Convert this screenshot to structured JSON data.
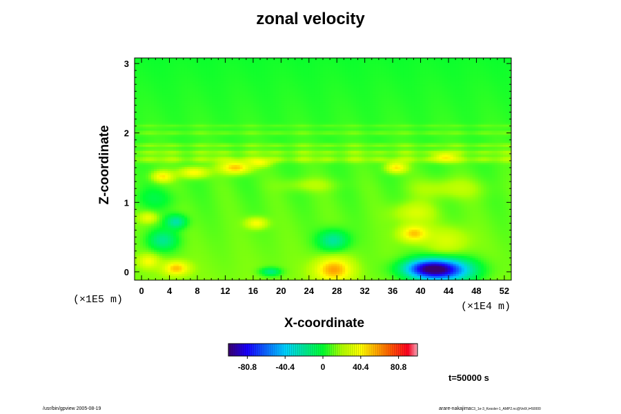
{
  "chart_data": {
    "type": "heatmap",
    "title": "zonal velocity",
    "xlabel": "X-coordinate",
    "ylabel": "Z-coordinate",
    "x_scale_note": "(×1E4 m)",
    "y_scale_note": "(×1E5 m)",
    "xlim": [
      -1,
      53
    ],
    "ylim": [
      -0.12,
      3.08
    ],
    "x_ticks": [
      0,
      4,
      8,
      12,
      16,
      20,
      24,
      28,
      32,
      36,
      40,
      44,
      48,
      52
    ],
    "y_ticks": [
      0,
      1,
      2,
      3
    ],
    "colorbar": {
      "range": [
        -101,
        101
      ],
      "tick_values": [
        -80.8,
        -40.4,
        0,
        40.4,
        80.8
      ],
      "tick_labels": [
        "-80.8",
        "-40.4",
        "0",
        "40.4",
        "80.8"
      ]
    },
    "features": [
      {
        "x": 43,
        "z": 0.02,
        "value": -85,
        "rx": 4.5,
        "rz": 0.17
      },
      {
        "x": 41,
        "z": 0.05,
        "value": -50,
        "rx": 3.5,
        "rz": 0.12
      },
      {
        "x": 27.5,
        "z": 0.03,
        "value": 45,
        "rx": 2.6,
        "rz": 0.17
      },
      {
        "x": 5,
        "z": 0.05,
        "value": 40,
        "rx": 1.8,
        "rz": 0.1
      },
      {
        "x": 1,
        "z": 0.15,
        "value": 25,
        "rx": 1.5,
        "rz": 0.1
      },
      {
        "x": 18.5,
        "z": 0.0,
        "value": -30,
        "rx": 1.5,
        "rz": 0.06
      },
      {
        "x": 27.5,
        "z": 0.45,
        "value": -35,
        "rx": 2.2,
        "rz": 0.15
      },
      {
        "x": 3,
        "z": 0.45,
        "value": -30,
        "rx": 2.2,
        "rz": 0.15
      },
      {
        "x": 5,
        "z": 0.72,
        "value": -35,
        "rx": 1.5,
        "rz": 0.1
      },
      {
        "x": 1,
        "z": 0.78,
        "value": 25,
        "rx": 1.3,
        "rz": 0.08
      },
      {
        "x": 16.5,
        "z": 0.7,
        "value": 30,
        "rx": 1.5,
        "rz": 0.08
      },
      {
        "x": 39,
        "z": 0.55,
        "value": 40,
        "rx": 2.0,
        "rz": 0.12
      },
      {
        "x": 39,
        "z": 0.85,
        "value": 20,
        "rx": 3.0,
        "rz": 0.15
      },
      {
        "x": 44,
        "z": 0.45,
        "value": 18,
        "rx": 3.0,
        "rz": 0.2
      },
      {
        "x": 13.5,
        "z": 1.5,
        "value": 45,
        "rx": 2.2,
        "rz": 0.09
      },
      {
        "x": 7.5,
        "z": 1.43,
        "value": 35,
        "rx": 2.0,
        "rz": 0.08
      },
      {
        "x": 3,
        "z": 1.37,
        "value": 35,
        "rx": 1.5,
        "rz": 0.08
      },
      {
        "x": 36.5,
        "z": 1.5,
        "value": 38,
        "rx": 1.5,
        "rz": 0.08
      },
      {
        "x": 43.5,
        "z": 1.65,
        "value": 30,
        "rx": 1.5,
        "rz": 0.07
      },
      {
        "x": 17,
        "z": 1.57,
        "value": 25,
        "rx": 1.5,
        "rz": 0.06
      },
      {
        "x": 44,
        "z": 1.2,
        "value": 15,
        "rx": 5.0,
        "rz": 0.15
      },
      {
        "x": 2,
        "z": 1.05,
        "value": -12,
        "rx": 3.0,
        "rz": 0.15
      },
      {
        "x": 24,
        "z": 1.25,
        "value": 12,
        "rx": 4.0,
        "rz": 0.1
      }
    ],
    "bands": [
      {
        "z": 1.72,
        "value": 12,
        "rz": 0.035
      },
      {
        "z": 1.82,
        "value": 10,
        "rz": 0.03
      },
      {
        "z": 2.0,
        "value": 8,
        "rz": 0.03
      },
      {
        "z": 2.1,
        "value": 6,
        "rz": 0.025
      },
      {
        "z": 1.62,
        "value": 14,
        "rz": 0.05
      }
    ]
  },
  "annotations": {
    "time_label": "t=50000 s",
    "footer_left": "/usr/bin/gpview 2005-08-19",
    "footer_right": "arare-nakajima",
    "footer_right_small": "C3_1e-3_Kessler-1_AMP2.nc@VelX,t=50000"
  }
}
